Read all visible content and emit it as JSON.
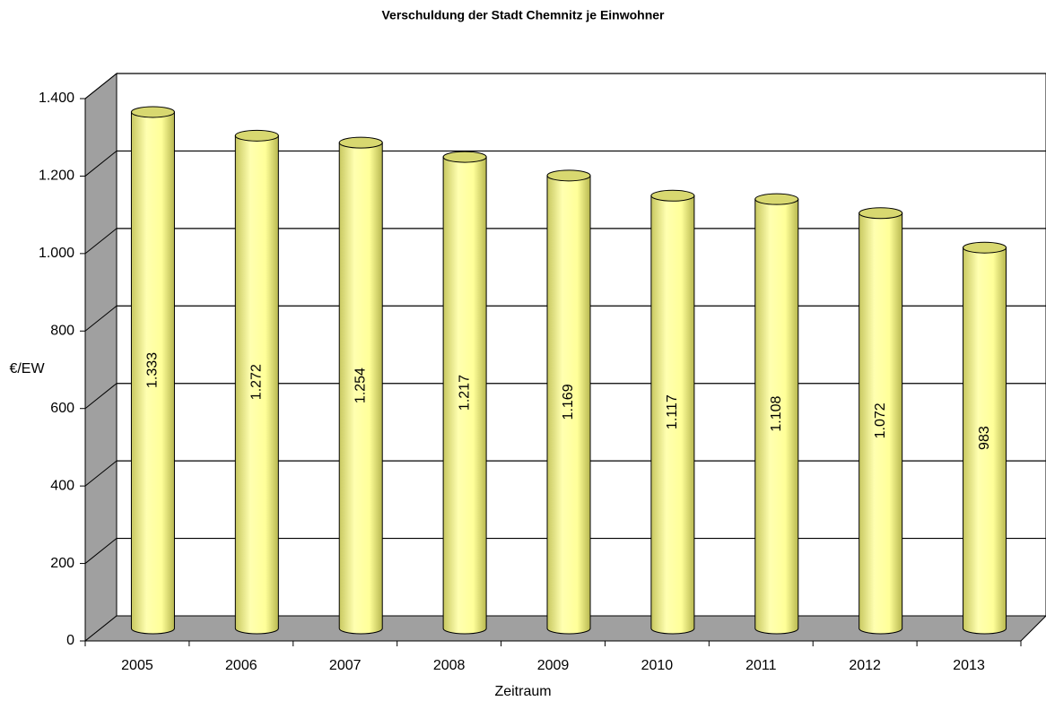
{
  "chart_data": {
    "type": "bar",
    "title": "Verschuldung der Stadt Chemnitz je Einwohner",
    "x_label": "Zeitraum",
    "y_label": "€/EW",
    "categories": [
      "2005",
      "2006",
      "2007",
      "2008",
      "2009",
      "2010",
      "2011",
      "2012",
      "2013"
    ],
    "values": [
      1333,
      1272,
      1254,
      1217,
      1169,
      1117,
      1108,
      1072,
      983
    ],
    "value_labels": [
      "1.333",
      "1.272",
      "1.254",
      "1.217",
      "1.169",
      "1.117",
      "1.108",
      "1.072",
      "983"
    ],
    "color": "#ffff99",
    "ylim": [
      0,
      1400
    ],
    "yticks": [
      0,
      200,
      400,
      600,
      800,
      {
        "value": 1000,
        "label": "1.000"
      },
      {
        "value": 1200,
        "label": "1.200"
      },
      {
        "value": 1400,
        "label": "1.400"
      }
    ],
    "grid": true
  }
}
